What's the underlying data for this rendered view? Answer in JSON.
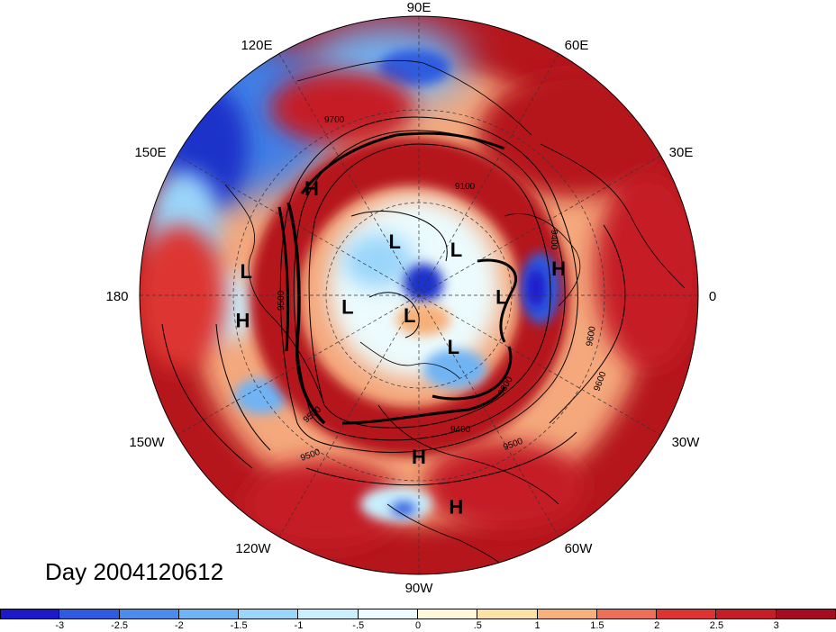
{
  "title_label": "Day 2004120612",
  "longitude_labels": [
    "90E",
    "60E",
    "30E",
    "0",
    "30W",
    "60W",
    "90W",
    "120W",
    "150W",
    "180",
    "150E",
    "120E"
  ],
  "highs_lows": [
    {
      "type": "H",
      "lon": 135,
      "lat": 33
    },
    {
      "type": "H",
      "lon": 11,
      "lat": 36
    },
    {
      "type": "H",
      "lon": -172,
      "lat": 25
    },
    {
      "type": "H",
      "lon": -90,
      "lat": 30
    },
    {
      "type": "H",
      "lon": -80,
      "lat": 15
    },
    {
      "type": "L",
      "lon": 172,
      "lat": 26
    },
    {
      "type": "L",
      "lon": 114,
      "lat": 66
    },
    {
      "type": "L",
      "lon": 51,
      "lat": 66
    },
    {
      "type": "L",
      "lon": -1,
      "lat": 57
    },
    {
      "type": "L",
      "lon": -171,
      "lat": 61
    },
    {
      "type": "L",
      "lon": -115,
      "lat": 81
    },
    {
      "type": "L",
      "lon": -56,
      "lat": 65
    }
  ],
  "contour_labels": [
    "9700",
    "9100",
    "9400",
    "9500",
    "9500",
    "9500",
    "9400",
    "9300",
    "9500",
    "9600",
    "9600"
  ],
  "colorbar": {
    "ticks": [
      "-3",
      "-2.5",
      "-2",
      "-1.5",
      "-1",
      "-.5",
      "0",
      ".5",
      "1",
      "1.5",
      "2",
      "2.5",
      "3"
    ],
    "colors": [
      "#1c19c9",
      "#2e5cdf",
      "#4a8bec",
      "#6fb4f4",
      "#9ad5fa",
      "#c9effd",
      "#ecfbfd",
      "#fdf8d8",
      "#fde2a6",
      "#f7b079",
      "#ed6f56",
      "#dd3433",
      "#c51d25",
      "#a50c1f"
    ]
  }
}
